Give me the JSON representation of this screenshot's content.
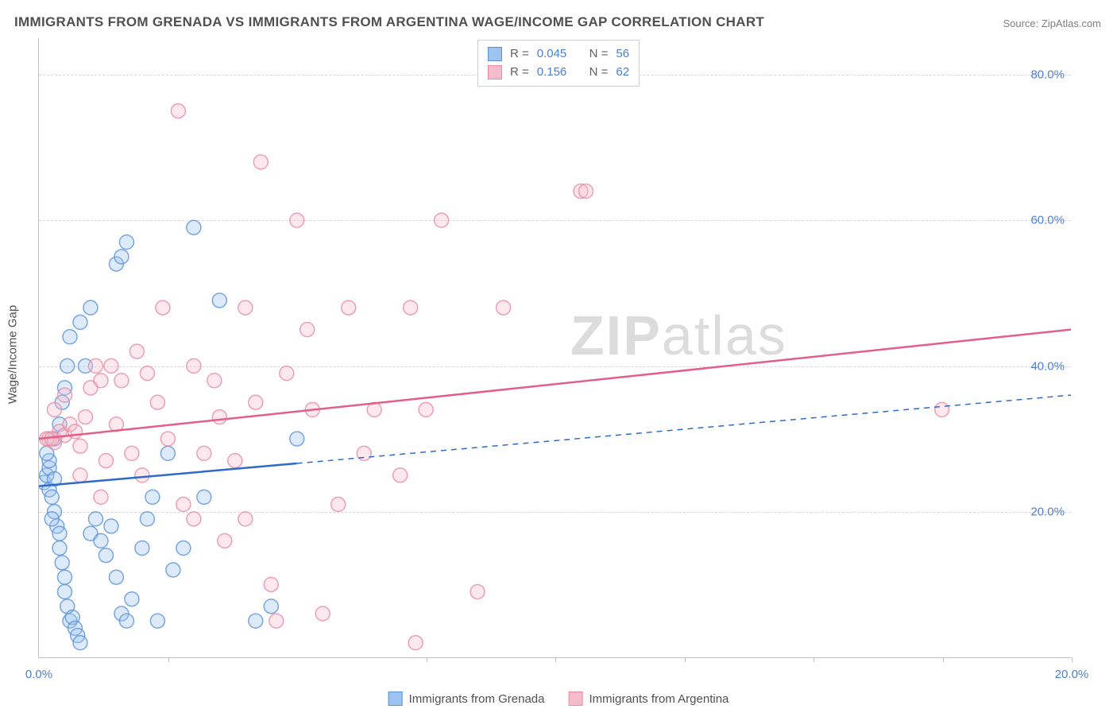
{
  "title": "IMMIGRANTS FROM GRENADA VS IMMIGRANTS FROM ARGENTINA WAGE/INCOME GAP CORRELATION CHART",
  "source": "Source: ZipAtlas.com",
  "y_axis_title": "Wage/Income Gap",
  "watermark": {
    "bold": "ZIP",
    "rest": "atlas"
  },
  "chart": {
    "type": "scatter",
    "background_color": "#ffffff",
    "grid_color": "#d8d8d8",
    "axis_color": "#c0c0c0",
    "tick_label_color": "#4a7fd8",
    "xlim": [
      0,
      20
    ],
    "ylim": [
      0,
      85
    ],
    "y_ticks": [
      20,
      40,
      60,
      80
    ],
    "y_tick_labels": [
      "20.0%",
      "40.0%",
      "60.0%",
      "80.0%"
    ],
    "x_ticks": [
      0,
      5,
      10,
      15,
      20
    ],
    "x_tick_labels": [
      "0.0%",
      "",
      "",
      "",
      "20.0%"
    ],
    "x_minor_ticks": [
      2.5,
      7.5,
      10,
      12.5,
      15,
      17.5,
      20
    ],
    "marker_radius": 9,
    "marker_opacity": 0.35,
    "marker_stroke_opacity": 0.8,
    "trend_line_width": 2.5,
    "series": [
      {
        "name": "Immigrants from Grenada",
        "color_fill": "#9dc3f0",
        "color_stroke": "#5a92d8",
        "color_line": "#2e6bc9",
        "r": "0.045",
        "n": "56",
        "trend": {
          "y_at_x0": 23.5,
          "y_at_xmax": 36.0,
          "solid_until_x": 5.0
        },
        "points": [
          [
            0.1,
            24
          ],
          [
            0.15,
            25
          ],
          [
            0.2,
            23
          ],
          [
            0.2,
            26
          ],
          [
            0.25,
            22
          ],
          [
            0.3,
            24.5
          ],
          [
            0.3,
            20
          ],
          [
            0.35,
            18
          ],
          [
            0.4,
            17
          ],
          [
            0.4,
            15
          ],
          [
            0.45,
            13
          ],
          [
            0.5,
            11
          ],
          [
            0.5,
            9
          ],
          [
            0.55,
            7
          ],
          [
            0.6,
            5
          ],
          [
            0.65,
            5.5
          ],
          [
            0.7,
            4
          ],
          [
            0.75,
            3
          ],
          [
            0.8,
            2
          ],
          [
            0.3,
            30
          ],
          [
            0.4,
            32
          ],
          [
            0.45,
            35
          ],
          [
            0.5,
            37
          ],
          [
            0.55,
            40
          ],
          [
            0.6,
            44
          ],
          [
            0.2,
            27
          ],
          [
            1.0,
            17
          ],
          [
            1.1,
            19
          ],
          [
            1.2,
            16
          ],
          [
            1.3,
            14
          ],
          [
            1.4,
            18
          ],
          [
            1.5,
            11
          ],
          [
            1.6,
            6
          ],
          [
            1.7,
            5
          ],
          [
            1.8,
            8
          ],
          [
            2.0,
            15
          ],
          [
            2.1,
            19
          ],
          [
            2.2,
            22
          ],
          [
            2.3,
            5
          ],
          [
            2.5,
            28
          ],
          [
            2.6,
            12
          ],
          [
            2.8,
            15
          ],
          [
            3.0,
            59
          ],
          [
            3.2,
            22
          ],
          [
            3.5,
            49
          ],
          [
            1.5,
            54
          ],
          [
            1.6,
            55
          ],
          [
            1.7,
            57
          ],
          [
            1.0,
            48
          ],
          [
            0.8,
            46
          ],
          [
            0.9,
            40
          ],
          [
            4.2,
            5
          ],
          [
            4.5,
            7
          ],
          [
            5.0,
            30
          ],
          [
            0.15,
            28
          ],
          [
            0.25,
            19
          ]
        ]
      },
      {
        "name": "Immigrants from Argentina",
        "color_fill": "#f5bccb",
        "color_stroke": "#e98aa3",
        "color_line": "#e26088",
        "r": "0.156",
        "n": "62",
        "trend": {
          "y_at_x0": 30.0,
          "y_at_xmax": 45.0,
          "solid_until_x": 20.0
        },
        "points": [
          [
            0.2,
            30
          ],
          [
            0.3,
            29.5
          ],
          [
            0.4,
            31
          ],
          [
            0.5,
            30.5
          ],
          [
            0.6,
            32
          ],
          [
            0.7,
            31
          ],
          [
            0.8,
            29
          ],
          [
            0.9,
            33
          ],
          [
            1.0,
            37
          ],
          [
            1.1,
            40
          ],
          [
            1.2,
            38
          ],
          [
            1.3,
            27
          ],
          [
            1.5,
            32
          ],
          [
            1.6,
            38
          ],
          [
            1.8,
            28
          ],
          [
            2.0,
            25
          ],
          [
            2.1,
            39
          ],
          [
            2.3,
            35
          ],
          [
            2.5,
            30
          ],
          [
            2.7,
            75
          ],
          [
            2.8,
            21
          ],
          [
            3.0,
            19
          ],
          [
            3.2,
            28
          ],
          [
            3.4,
            38
          ],
          [
            3.5,
            33
          ],
          [
            3.8,
            27
          ],
          [
            4.0,
            48
          ],
          [
            4.2,
            35
          ],
          [
            4.3,
            68
          ],
          [
            4.5,
            10
          ],
          [
            4.6,
            5
          ],
          [
            4.8,
            39
          ],
          [
            5.0,
            60
          ],
          [
            5.2,
            45
          ],
          [
            5.3,
            34
          ],
          [
            5.5,
            6
          ],
          [
            5.8,
            21
          ],
          [
            6.0,
            48
          ],
          [
            6.3,
            28
          ],
          [
            6.5,
            34
          ],
          [
            7.0,
            25
          ],
          [
            7.2,
            48
          ],
          [
            7.3,
            2
          ],
          [
            7.5,
            34
          ],
          [
            7.8,
            60
          ],
          [
            8.5,
            9
          ],
          [
            9.0,
            48
          ],
          [
            10.5,
            64
          ],
          [
            10.6,
            64
          ],
          [
            17.5,
            34
          ],
          [
            0.3,
            34
          ],
          [
            0.5,
            36
          ],
          [
            1.4,
            40
          ],
          [
            1.9,
            42
          ],
          [
            2.4,
            48
          ],
          [
            3.0,
            40
          ],
          [
            3.6,
            16
          ],
          [
            4.0,
            19
          ],
          [
            0.8,
            25
          ],
          [
            1.2,
            22
          ],
          [
            0.15,
            30
          ],
          [
            0.25,
            30
          ]
        ]
      }
    ]
  },
  "legend_top": {
    "r_label": "R =",
    "n_label": "N ="
  }
}
